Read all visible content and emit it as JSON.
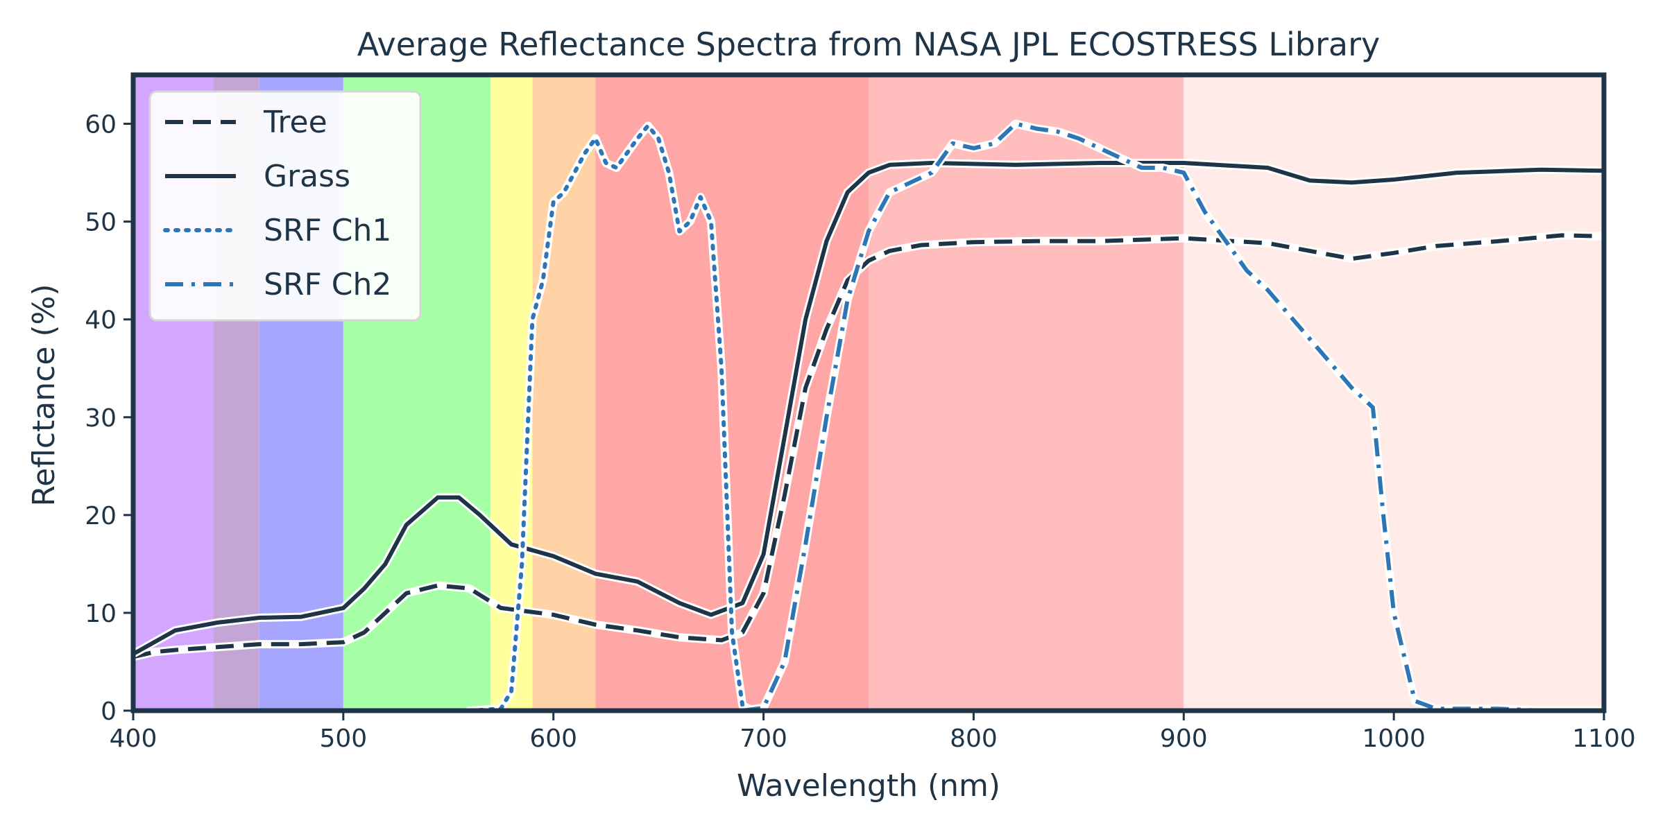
{
  "chart_data": {
    "type": "line",
    "title": "Average Reflectance Spectra from NASA JPL ECOSTRESS Library",
    "xlabel": "Wavelength (nm)",
    "ylabel": "Reflctance (%)",
    "xlim": [
      400,
      1100
    ],
    "ylim": [
      0,
      65
    ],
    "xticks": [
      400,
      500,
      600,
      700,
      800,
      900,
      1000,
      1100
    ],
    "yticks": [
      0,
      10,
      20,
      30,
      40,
      50,
      60
    ],
    "grid": false,
    "legend": "top-left",
    "background_bands": [
      {
        "from": 400,
        "to": 438,
        "color": "#d3a6ff"
      },
      {
        "from": 438,
        "to": 460,
        "color": "#c4a6d6"
      },
      {
        "from": 460,
        "to": 500,
        "color": "#a6a6ff"
      },
      {
        "from": 500,
        "to": 570,
        "color": "#a6ffa6"
      },
      {
        "from": 570,
        "to": 590,
        "color": "#ffff9e"
      },
      {
        "from": 590,
        "to": 620,
        "color": "#ffd3a6"
      },
      {
        "from": 620,
        "to": 750,
        "color": "#ffa6a6"
      },
      {
        "from": 750,
        "to": 900,
        "color": "#ffbdbd"
      },
      {
        "from": 900,
        "to": 1100,
        "color": "#ffebe8"
      }
    ],
    "series": [
      {
        "name": "Tree",
        "style": "dashed",
        "color": "#1f3447",
        "points": [
          [
            400,
            5.5
          ],
          [
            410,
            6
          ],
          [
            420,
            6.2
          ],
          [
            440,
            6.5
          ],
          [
            460,
            6.8
          ],
          [
            480,
            6.8
          ],
          [
            500,
            7
          ],
          [
            510,
            8
          ],
          [
            520,
            10
          ],
          [
            530,
            12
          ],
          [
            545,
            12.8
          ],
          [
            560,
            12.5
          ],
          [
            575,
            10.5
          ],
          [
            600,
            9.8
          ],
          [
            620,
            8.8
          ],
          [
            640,
            8.2
          ],
          [
            660,
            7.5
          ],
          [
            680,
            7.2
          ],
          [
            690,
            8
          ],
          [
            700,
            12
          ],
          [
            710,
            22
          ],
          [
            720,
            33
          ],
          [
            730,
            39
          ],
          [
            740,
            44
          ],
          [
            750,
            46
          ],
          [
            760,
            47
          ],
          [
            775,
            47.6
          ],
          [
            800,
            47.9
          ],
          [
            830,
            48
          ],
          [
            860,
            48
          ],
          [
            900,
            48.3
          ],
          [
            940,
            47.8
          ],
          [
            980,
            46.2
          ],
          [
            1000,
            46.8
          ],
          [
            1020,
            47.5
          ],
          [
            1050,
            48
          ],
          [
            1080,
            48.6
          ],
          [
            1100,
            48.5
          ]
        ]
      },
      {
        "name": "Grass",
        "style": "solid",
        "color": "#1f3447",
        "points": [
          [
            400,
            5.8
          ],
          [
            410,
            7
          ],
          [
            420,
            8.2
          ],
          [
            440,
            9
          ],
          [
            460,
            9.5
          ],
          [
            480,
            9.6
          ],
          [
            500,
            10.5
          ],
          [
            510,
            12.5
          ],
          [
            520,
            15
          ],
          [
            530,
            19
          ],
          [
            545,
            21.8
          ],
          [
            555,
            21.8
          ],
          [
            565,
            20
          ],
          [
            580,
            17
          ],
          [
            600,
            15.8
          ],
          [
            620,
            14
          ],
          [
            640,
            13.2
          ],
          [
            660,
            11
          ],
          [
            675,
            9.8
          ],
          [
            690,
            11
          ],
          [
            700,
            16
          ],
          [
            710,
            28
          ],
          [
            720,
            40
          ],
          [
            730,
            48
          ],
          [
            740,
            53
          ],
          [
            750,
            55
          ],
          [
            760,
            55.8
          ],
          [
            780,
            56
          ],
          [
            820,
            55.8
          ],
          [
            860,
            56
          ],
          [
            900,
            56
          ],
          [
            940,
            55.5
          ],
          [
            960,
            54.2
          ],
          [
            980,
            54
          ],
          [
            1000,
            54.3
          ],
          [
            1030,
            55
          ],
          [
            1070,
            55.3
          ],
          [
            1100,
            55.2
          ]
        ]
      },
      {
        "name": "SRF Ch1",
        "style": "dotted",
        "color": "#2e75b6",
        "points": [
          [
            560,
            0
          ],
          [
            575,
            0.2
          ],
          [
            580,
            2
          ],
          [
            585,
            15
          ],
          [
            590,
            40
          ],
          [
            595,
            44
          ],
          [
            600,
            52
          ],
          [
            605,
            53
          ],
          [
            610,
            55
          ],
          [
            615,
            57
          ],
          [
            620,
            58.5
          ],
          [
            625,
            56
          ],
          [
            630,
            55.5
          ],
          [
            640,
            58.5
          ],
          [
            645,
            59.8
          ],
          [
            650,
            58.5
          ],
          [
            655,
            55
          ],
          [
            660,
            49
          ],
          [
            665,
            50
          ],
          [
            670,
            52.5
          ],
          [
            675,
            50
          ],
          [
            680,
            35
          ],
          [
            685,
            8
          ],
          [
            690,
            0.5
          ],
          [
            695,
            0
          ]
        ]
      },
      {
        "name": "SRF Ch2",
        "style": "dashdot",
        "color": "#2e75b6",
        "points": [
          [
            690,
            0
          ],
          [
            700,
            0.3
          ],
          [
            710,
            5
          ],
          [
            720,
            17
          ],
          [
            730,
            30
          ],
          [
            740,
            42
          ],
          [
            750,
            49
          ],
          [
            760,
            53
          ],
          [
            770,
            54
          ],
          [
            780,
            55
          ],
          [
            790,
            58
          ],
          [
            800,
            57.5
          ],
          [
            810,
            58
          ],
          [
            820,
            60
          ],
          [
            830,
            59.5
          ],
          [
            840,
            59.2
          ],
          [
            850,
            58.5
          ],
          [
            860,
            57.5
          ],
          [
            870,
            56.5
          ],
          [
            880,
            55.5
          ],
          [
            890,
            55.5
          ],
          [
            900,
            55
          ],
          [
            910,
            51
          ],
          [
            920,
            48
          ],
          [
            930,
            45
          ],
          [
            940,
            43
          ],
          [
            950,
            40.5
          ],
          [
            960,
            38
          ],
          [
            970,
            35.5
          ],
          [
            980,
            33
          ],
          [
            990,
            31
          ],
          [
            995,
            20
          ],
          [
            1000,
            10
          ],
          [
            1010,
            1
          ],
          [
            1020,
            0.2
          ],
          [
            1050,
            0.2
          ],
          [
            1070,
            0
          ],
          [
            1100,
            0
          ]
        ]
      }
    ]
  }
}
